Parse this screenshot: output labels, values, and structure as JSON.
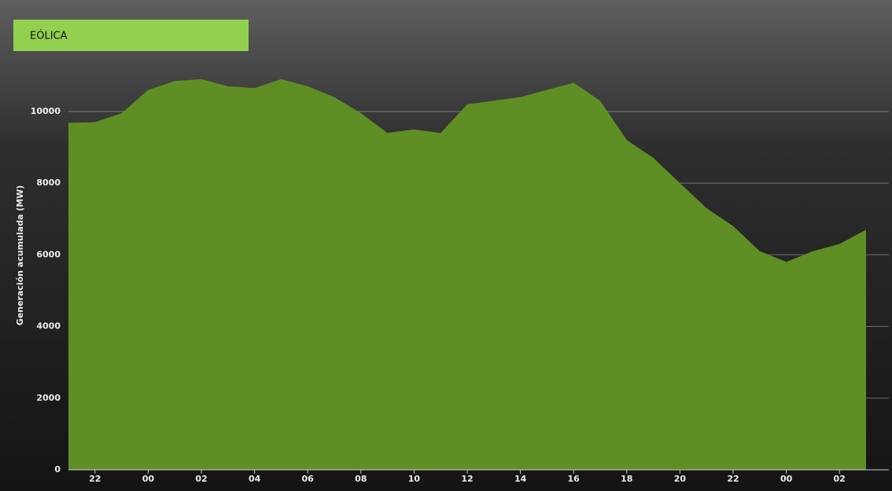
{
  "chart_data": {
    "type": "area",
    "title": "EÓLICA",
    "y_label": "Generación acumulada (MW)",
    "categories": [
      null,
      "22",
      null,
      "00",
      null,
      "02",
      null,
      "04",
      null,
      "06",
      null,
      "08",
      null,
      "10",
      null,
      "12",
      null,
      "14",
      null,
      "16",
      null,
      "18",
      null,
      "20",
      null,
      "22",
      null,
      "00",
      null,
      "02",
      null
    ],
    "values": [
      9680,
      9700,
      9950,
      10600,
      10850,
      10900,
      10700,
      10650,
      10900,
      10700,
      10400,
      9950,
      9400,
      9500,
      9400,
      10200,
      10300,
      10400,
      10600,
      10800,
      10300,
      9200,
      8700,
      8000,
      7300,
      6800,
      6100,
      5800,
      6100,
      6300,
      6700
    ],
    "color": "#5f8f24",
    "ylim": [
      0,
      13000
    ],
    "yticks": [
      0,
      2000,
      4000,
      6000,
      8000,
      10000
    ],
    "grid": true
  }
}
